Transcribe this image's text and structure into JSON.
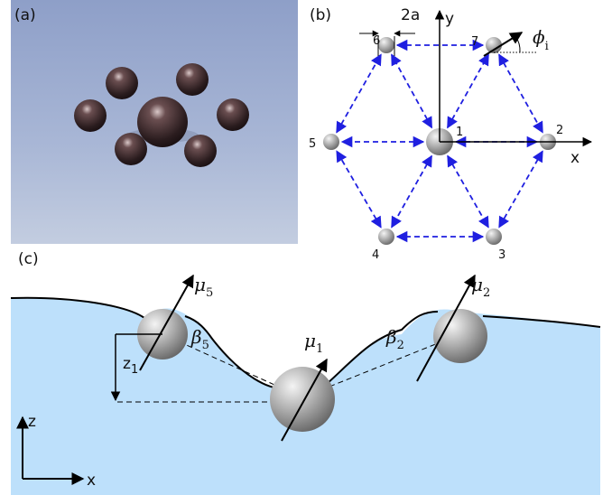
{
  "panels": {
    "a": {
      "label": "(a)"
    },
    "b": {
      "label": "(b)",
      "spacing_label": "2a",
      "axis_x": "x",
      "axis_y": "y",
      "nodes": [
        "1",
        "2",
        "3",
        "4",
        "5",
        "6",
        "7"
      ],
      "angle": {
        "symbol": "ϕ",
        "subscript": "i"
      }
    },
    "c": {
      "label": "(c)",
      "moments": [
        {
          "symbol": "μ",
          "subscript": "5"
        },
        {
          "symbol": "μ",
          "subscript": "1"
        },
        {
          "symbol": "μ",
          "subscript": "2"
        }
      ],
      "angles": [
        {
          "symbol": "β",
          "subscript": "5"
        },
        {
          "symbol": "β",
          "subscript": "2"
        }
      ],
      "height": {
        "symbol": "z",
        "subscript": "1"
      },
      "axis_z": "z",
      "axis_x": "x"
    }
  }
}
